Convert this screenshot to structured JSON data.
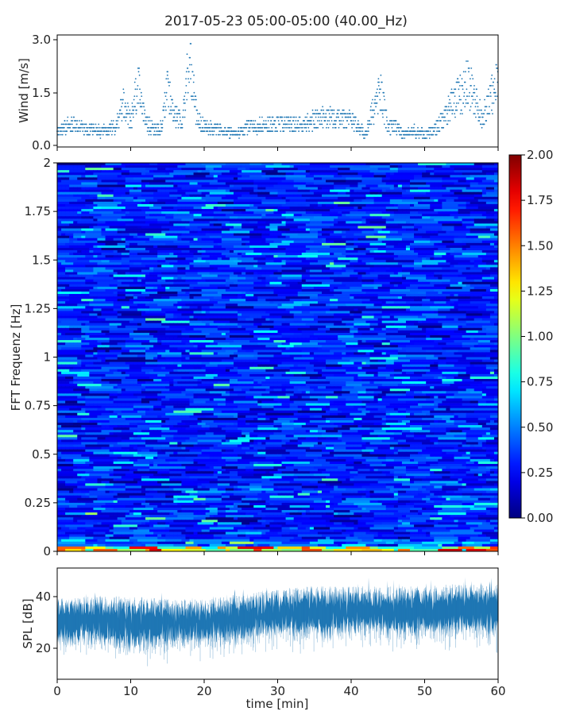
{
  "title": "2017-05-23 05:00-05:00 (40.00_Hz)",
  "colors": {
    "series": "#1f77b4",
    "axis": "#000000"
  },
  "chart_data": [
    {
      "type": "scatter",
      "name": "wind",
      "ylabel": "Wind [m/s]",
      "xlim": [
        0,
        60
      ],
      "ylim": [
        -0.05,
        3.15
      ],
      "yticks": [
        "0.0",
        "1.5",
        "3.0"
      ],
      "xtick_positions": [
        0,
        10,
        20,
        30,
        40,
        50,
        60
      ],
      "profile": {
        "t": [
          0,
          2,
          4,
          6,
          8,
          9,
          10,
          11,
          12,
          14,
          15,
          16,
          17,
          18,
          19,
          20,
          22,
          24,
          26,
          28,
          30,
          33,
          36,
          40,
          42,
          43,
          44,
          45,
          46,
          47,
          48,
          49,
          50,
          51,
          52,
          53,
          54,
          55,
          56,
          57,
          58,
          59,
          60
        ],
        "wind": [
          0.4,
          0.6,
          0.45,
          0.4,
          0.5,
          1.2,
          0.7,
          1.8,
          0.6,
          0.4,
          1.6,
          0.8,
          0.7,
          2.4,
          0.8,
          0.5,
          0.45,
          0.3,
          0.5,
          0.6,
          0.6,
          0.6,
          0.8,
          0.7,
          0.3,
          1.0,
          1.5,
          0.5,
          0.6,
          0.3,
          0.4,
          0.4,
          0.3,
          0.4,
          0.6,
          0.9,
          1.3,
          1.5,
          1.8,
          1.2,
          0.8,
          1.4,
          1.8
        ]
      }
    },
    {
      "type": "heatmap",
      "name": "spectrogram",
      "ylabel": "FFT Frequenz [Hz]",
      "xlim": [
        0,
        60
      ],
      "ylim": [
        0,
        2
      ],
      "yticks": [
        "0",
        "0.25",
        "0.5",
        "0.75",
        "1",
        "1.25",
        "1.5",
        "1.75",
        "2"
      ],
      "colorbar": {
        "range": [
          0,
          2
        ],
        "ticks": [
          "0.00",
          "0.25",
          "0.50",
          "0.75",
          "1.00",
          "1.25",
          "1.50",
          "1.75",
          "2.00"
        ],
        "colormap": "jet"
      },
      "typical_value": 0.3,
      "low_frequency_band_value": 1.6
    },
    {
      "type": "area",
      "name": "spl",
      "ylabel": "SPL [dB]",
      "xlabel": "time [min]",
      "xlim": [
        0,
        60
      ],
      "ylim": [
        9,
        52
      ],
      "xticks": [
        "0",
        "10",
        "20",
        "30",
        "40",
        "50",
        "60"
      ],
      "yticks": [
        "20",
        "40"
      ],
      "profile": {
        "t": [
          0,
          5,
          10,
          15,
          20,
          25,
          30,
          35,
          40,
          45,
          50,
          55,
          60
        ],
        "lower": [
          26,
          26,
          24,
          25,
          26,
          27,
          29,
          29,
          30,
          29,
          29,
          30,
          30
        ],
        "upper": [
          37,
          37,
          37,
          36,
          36,
          38,
          40,
          41,
          41,
          41,
          41,
          42,
          42
        ]
      }
    }
  ]
}
